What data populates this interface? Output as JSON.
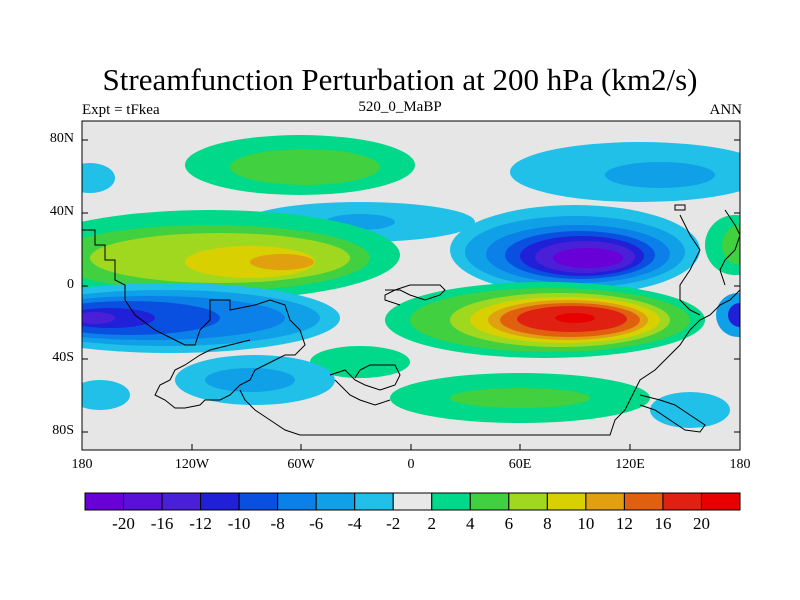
{
  "title": "Streamfunction Perturbation at 200 hPa (km2/s)",
  "subtitle_left": "Expt = tFkea",
  "subtitle_center": "520_0_MaBP",
  "subtitle_right": "ANN",
  "lat_ticks": [
    "80N",
    "40N",
    "0",
    "40S",
    "80S"
  ],
  "lon_ticks": [
    "180",
    "120W",
    "60W",
    "0",
    "60E",
    "120E",
    "180"
  ],
  "colorbar": {
    "colors": [
      "#6a00d8",
      "#5a10d8",
      "#4a1fd8",
      "#2020d8",
      "#0a50e0",
      "#0a80e8",
      "#10a0e8",
      "#20c0e8",
      "#e8e8e8",
      "#00d88a",
      "#40d040",
      "#a0d820",
      "#d8d000",
      "#e0a010",
      "#e06010",
      "#e02010",
      "#e80000"
    ],
    "labels": [
      "-20",
      "-16",
      "-12",
      "-10",
      "-8",
      "-6",
      "-4",
      "-2",
      "2",
      "4",
      "6",
      "8",
      "10",
      "12",
      "16",
      "20"
    ]
  }
}
